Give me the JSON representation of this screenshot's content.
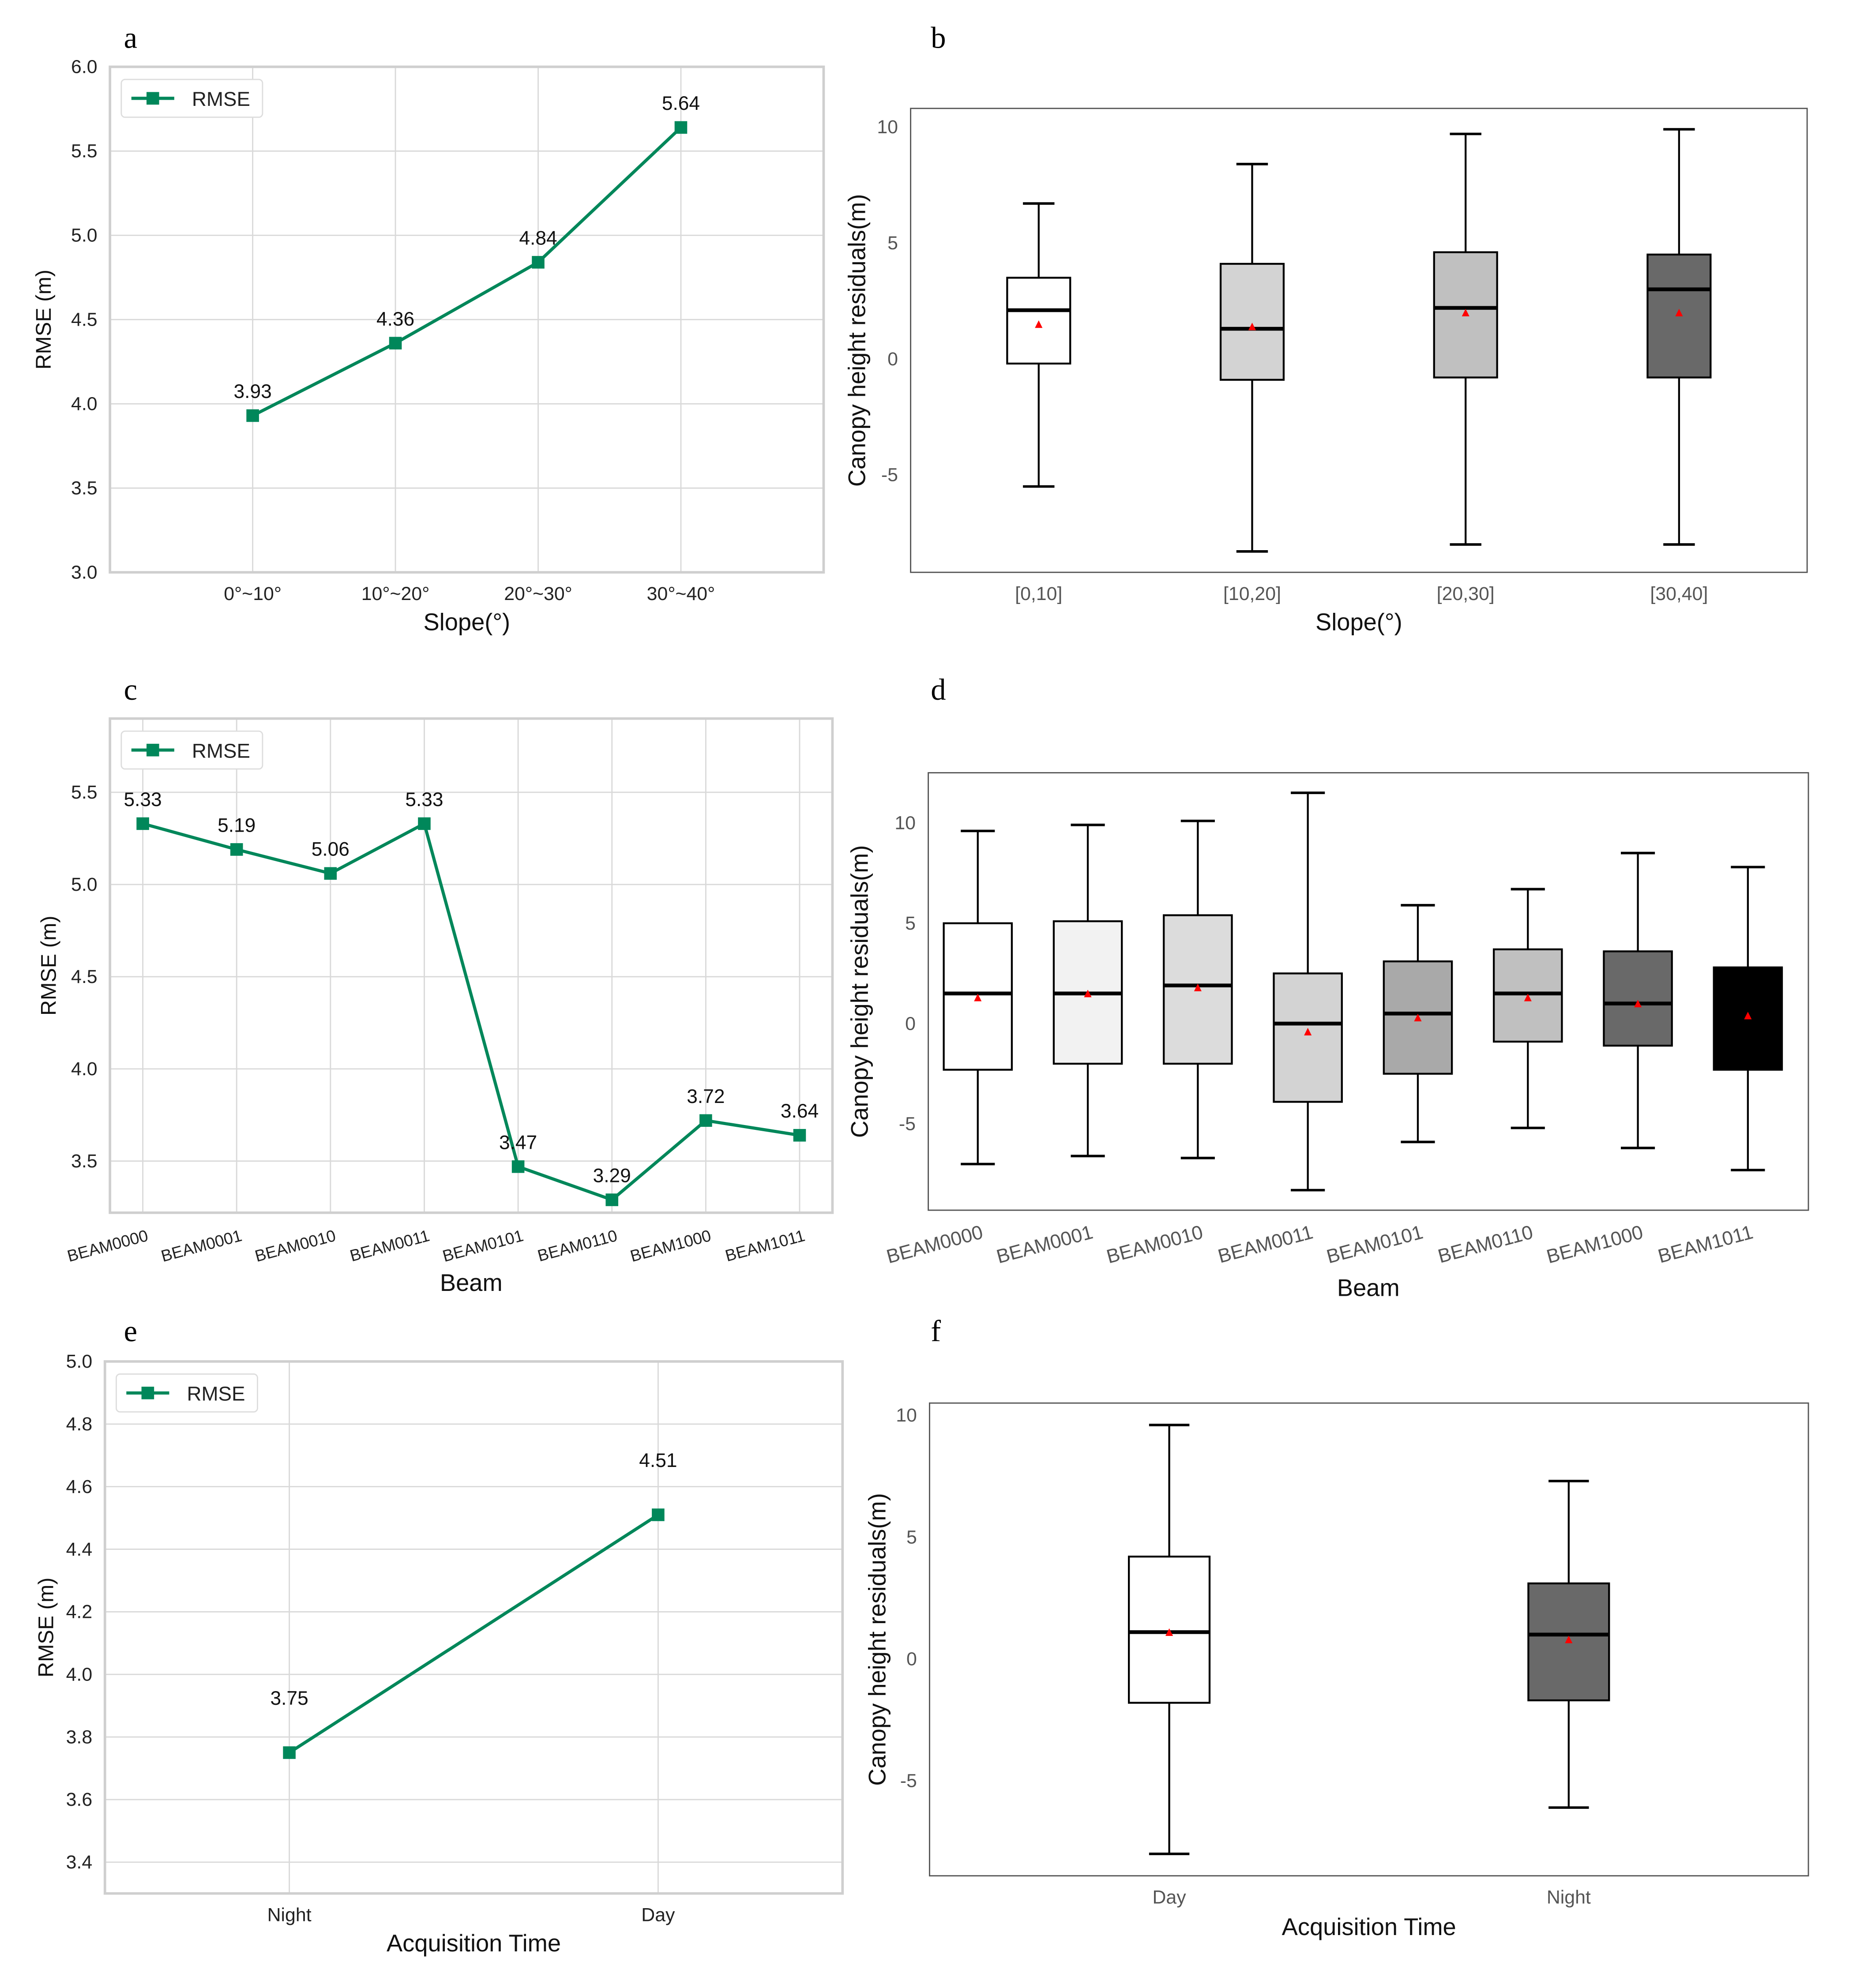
{
  "colors": {
    "line": "#00875a",
    "grid": "#d9d9d9",
    "frame": "#cfcfcf",
    "mean_marker": "#ff0000"
  },
  "chart_data": [
    {
      "panel": "a",
      "type": "line",
      "title": "",
      "xlabel": "Slope(°)",
      "ylabel": "RMSE (m)",
      "categories": [
        "0°~10°",
        "10°~20°",
        "20°~30°",
        "30°~40°"
      ],
      "series": [
        {
          "name": "RMSE",
          "values": [
            3.93,
            4.36,
            4.84,
            5.64
          ]
        }
      ],
      "data_labels": [
        "3.93",
        "4.36",
        "4.84",
        "5.64"
      ],
      "yticks": [
        "3.0",
        "3.5",
        "4.0",
        "4.5",
        "5.0",
        "5.5",
        "6.0"
      ],
      "ylim": [
        3.0,
        6.0
      ],
      "grid": true,
      "legend": "top-left"
    },
    {
      "panel": "b",
      "type": "box",
      "xlabel": "Slope(°)",
      "ylabel": "Canopy height residuals(m)",
      "categories": [
        "[0,10]",
        "[10,20]",
        "[20,30]",
        "[30,40]"
      ],
      "boxes": [
        {
          "whislo": -5.5,
          "q1": -0.2,
          "med": 2.1,
          "q3": 3.5,
          "whishi": 6.7,
          "mean": 1.5,
          "fill": "#ffffff"
        },
        {
          "whislo": -8.3,
          "q1": -0.9,
          "med": 1.3,
          "q3": 4.1,
          "whishi": 8.4,
          "mean": 1.4,
          "fill": "#d3d3d3"
        },
        {
          "whislo": -8.0,
          "q1": -0.8,
          "med": 2.2,
          "q3": 4.6,
          "whishi": 9.7,
          "mean": 2.0,
          "fill": "#c0c0c0"
        },
        {
          "whislo": -8.0,
          "q1": -0.8,
          "med": 3.0,
          "q3": 4.5,
          "whishi": 9.9,
          "mean": 2.0,
          "fill": "#696969"
        }
      ],
      "yticks": [
        "10",
        "5",
        "0",
        "-5"
      ],
      "ylim": [
        -9.2,
        10.8
      ],
      "grid": false
    },
    {
      "panel": "c",
      "type": "line",
      "xlabel": "Beam",
      "ylabel": "RMSE (m)",
      "categories": [
        "BEAM0000",
        "BEAM0001",
        "BEAM0010",
        "BEAM0011",
        "BEAM0101",
        "BEAM0110",
        "BEAM1000",
        "BEAM1011"
      ],
      "series": [
        {
          "name": "RMSE",
          "values": [
            5.33,
            5.19,
            5.06,
            5.33,
            3.47,
            3.29,
            3.72,
            3.64
          ]
        }
      ],
      "data_labels": [
        "5.33",
        "5.19",
        "5.06",
        "5.33",
        "3.47",
        "3.29",
        "3.72",
        "3.64"
      ],
      "yticks": [
        "3.5",
        "4.0",
        "4.5",
        "5.0",
        "5.5"
      ],
      "ylim": [
        3.22,
        5.9
      ],
      "grid": true,
      "legend": "top-left"
    },
    {
      "panel": "d",
      "type": "box",
      "xlabel": "Beam",
      "ylabel": "Canopy height residuals(m)",
      "categories": [
        "BEAM0000",
        "BEAM0001",
        "BEAM0010",
        "BEAM0011",
        "BEAM0101",
        "BEAM0110",
        "BEAM1000",
        "BEAM1011"
      ],
      "boxes": [
        {
          "whislo": -7.0,
          "q1": -2.3,
          "med": 1.5,
          "q3": 5.0,
          "whishi": 9.6,
          "mean": 1.3,
          "fill": "#ffffff"
        },
        {
          "whislo": -6.6,
          "q1": -2.0,
          "med": 1.5,
          "q3": 5.1,
          "whishi": 9.9,
          "mean": 1.5,
          "fill": "#f2f2f2"
        },
        {
          "whislo": -6.7,
          "q1": -2.0,
          "med": 1.9,
          "q3": 5.4,
          "whishi": 10.1,
          "mean": 1.8,
          "fill": "#dcdcdc"
        },
        {
          "whislo": -8.3,
          "q1": -3.9,
          "med": 0.0,
          "q3": 2.5,
          "whishi": 11.5,
          "mean": -0.4,
          "fill": "#d3d3d3"
        },
        {
          "whislo": -5.9,
          "q1": -2.5,
          "med": 0.5,
          "q3": 3.1,
          "whishi": 5.9,
          "mean": 0.3,
          "fill": "#a9a9a9"
        },
        {
          "whislo": -5.2,
          "q1": -0.9,
          "med": 1.5,
          "q3": 3.7,
          "whishi": 6.7,
          "mean": 1.3,
          "fill": "#c0c0c0"
        },
        {
          "whislo": -6.2,
          "q1": -1.1,
          "med": 1.0,
          "q3": 3.6,
          "whishi": 8.5,
          "mean": 1.0,
          "fill": "#696969"
        },
        {
          "whislo": -7.3,
          "q1": -2.3,
          "med": 0.5,
          "q3": 2.8,
          "whishi": 7.8,
          "mean": 0.4,
          "fill": "#000000"
        }
      ],
      "yticks": [
        "10",
        "5",
        "0",
        "-5"
      ],
      "ylim": [
        -9.3,
        12.5
      ],
      "grid": false
    },
    {
      "panel": "e",
      "type": "line",
      "xlabel": "Acquisition Time",
      "ylabel": "RMSE (m)",
      "categories": [
        "Night",
        "Day"
      ],
      "series": [
        {
          "name": "RMSE",
          "values": [
            3.75,
            4.51
          ]
        }
      ],
      "data_labels": [
        "3.75",
        "4.51"
      ],
      "yticks": [
        "3.4",
        "3.6",
        "3.8",
        "4.0",
        "4.2",
        "4.4",
        "4.6",
        "4.8",
        "5.0"
      ],
      "ylim": [
        3.3,
        5.0
      ],
      "grid": true,
      "legend": "top-left"
    },
    {
      "panel": "f",
      "type": "box",
      "xlabel": "Acquisition Time",
      "ylabel": "Canopy height residuals(m)",
      "categories": [
        "Day",
        "Night"
      ],
      "boxes": [
        {
          "whislo": -8.0,
          "q1": -1.8,
          "med": 1.1,
          "q3": 4.2,
          "whishi": 9.6,
          "mean": 1.1,
          "fill": "#ffffff"
        },
        {
          "whislo": -6.1,
          "q1": -1.7,
          "med": 1.0,
          "q3": 3.1,
          "whishi": 7.3,
          "mean": 0.8,
          "fill": "#696969"
        }
      ],
      "yticks": [
        "10",
        "5",
        "0",
        "-5"
      ],
      "ylim": [
        -8.9,
        10.5
      ],
      "grid": false
    }
  ]
}
